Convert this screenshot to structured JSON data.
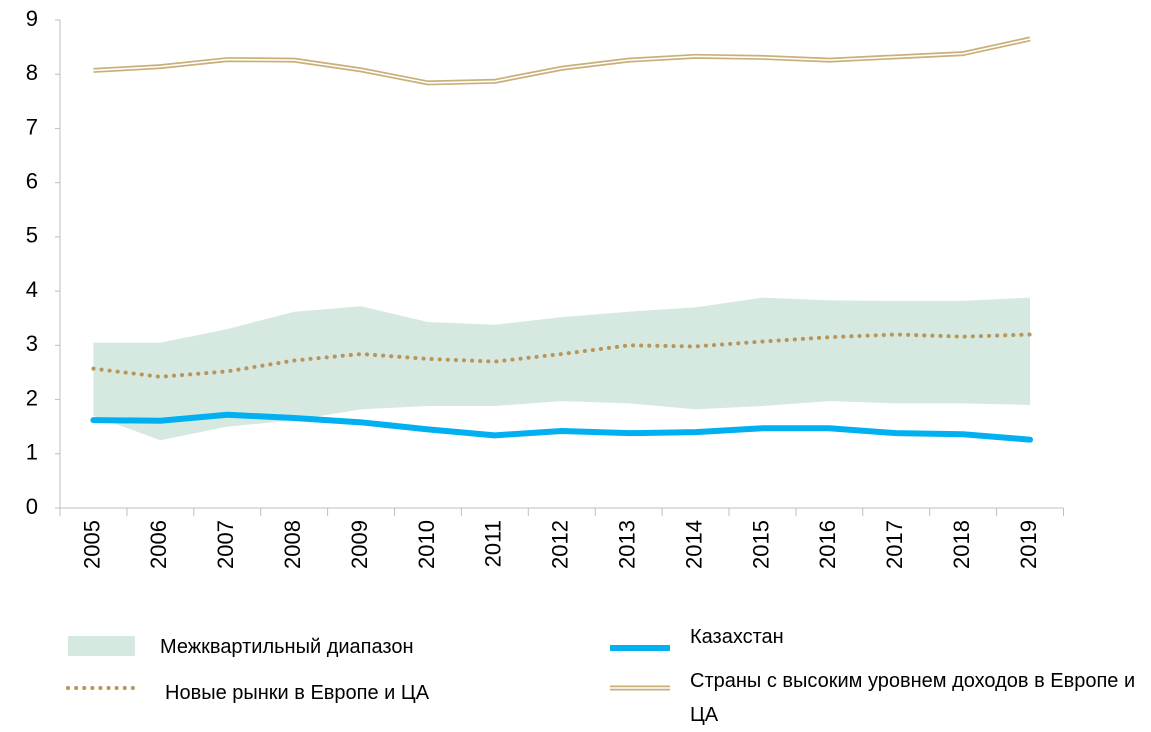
{
  "chart_data": {
    "type": "line",
    "categories": [
      "2005",
      "2006",
      "2007",
      "2008",
      "2009",
      "2010",
      "2011",
      "2012",
      "2013",
      "2014",
      "2015",
      "2016",
      "2017",
      "2018",
      "2019"
    ],
    "ylim": [
      0,
      9
    ],
    "yticks": [
      0,
      1,
      2,
      3,
      4,
      5,
      6,
      7,
      8,
      9
    ],
    "grid": false,
    "legend": "bottom",
    "series": [
      {
        "name": "Межквартильный диапазон",
        "color": "#d6e9e0",
        "style": "band",
        "lower": [
          1.7,
          1.25,
          1.5,
          1.62,
          1.82,
          1.88,
          1.88,
          1.97,
          1.93,
          1.82,
          1.88,
          1.97,
          1.93,
          1.93,
          1.9
        ],
        "upper": [
          3.05,
          3.05,
          3.3,
          3.62,
          3.72,
          3.43,
          3.38,
          3.52,
          3.62,
          3.7,
          3.88,
          3.83,
          3.82,
          3.82,
          3.88
        ]
      },
      {
        "name": "Казахстан",
        "color": "#00b0f0",
        "style": "solid",
        "values": [
          1.62,
          1.61,
          1.72,
          1.66,
          1.58,
          1.45,
          1.34,
          1.42,
          1.38,
          1.4,
          1.47,
          1.47,
          1.38,
          1.36,
          1.26
        ]
      },
      {
        "name": "Новые рынки в Европе и ЦА",
        "color": "#b8965a",
        "style": "dotted",
        "values": [
          2.57,
          2.42,
          2.52,
          2.72,
          2.84,
          2.75,
          2.7,
          2.84,
          3.0,
          2.98,
          3.07,
          3.15,
          3.2,
          3.16,
          3.2
        ]
      },
      {
        "name": "Страны с высоким уровнем доходов в Европе и ЦА",
        "color": "#c8b078",
        "style": "double",
        "values": [
          8.07,
          8.14,
          8.27,
          8.26,
          8.08,
          7.84,
          7.87,
          8.11,
          8.26,
          8.33,
          8.31,
          8.26,
          8.32,
          8.38,
          8.65
        ]
      }
    ]
  }
}
